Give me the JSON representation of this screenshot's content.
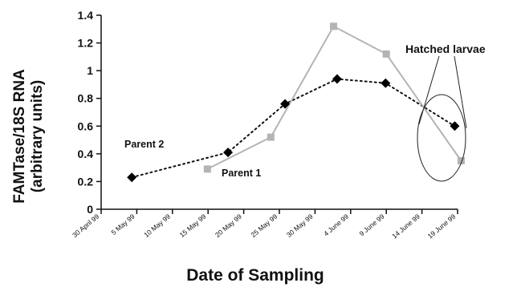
{
  "chart_data": {
    "type": "line",
    "ylabel_line1": "FAMTase/18S RNA",
    "ylabel_line2": "(arbitrary units)",
    "xlabel": "Date of Sampling",
    "ylim": [
      0,
      1.4
    ],
    "yticks": [
      "0",
      "0.2",
      "0.4",
      "0.6",
      "0.8",
      "1",
      "1.2",
      "1.4"
    ],
    "xticks": [
      "30 April 99",
      "5 May 99",
      "10 May 99",
      "15 May 99",
      "20 May 99",
      "25 May 99",
      "30 May 99",
      "4 June 99",
      "9 June 99",
      "14 June 99",
      "19 June 99"
    ],
    "series": [
      {
        "name": "Parent 2",
        "style": "dotted",
        "marker": "diamond",
        "color": "#000000",
        "x": [
          4.3,
          17.8,
          25.8,
          33.1,
          39.9,
          49.6
        ],
        "y": [
          0.23,
          0.41,
          0.76,
          0.94,
          0.91,
          0.6
        ]
      },
      {
        "name": "Parent 1",
        "style": "solid",
        "marker": "square",
        "color": "#b4b4b4",
        "x": [
          14.9,
          23.8,
          32.6,
          40.0,
          50.5
        ],
        "y": [
          0.29,
          0.52,
          1.32,
          1.12,
          0.35
        ]
      }
    ],
    "annotations": {
      "hatched": "Hatched larvae"
    }
  }
}
